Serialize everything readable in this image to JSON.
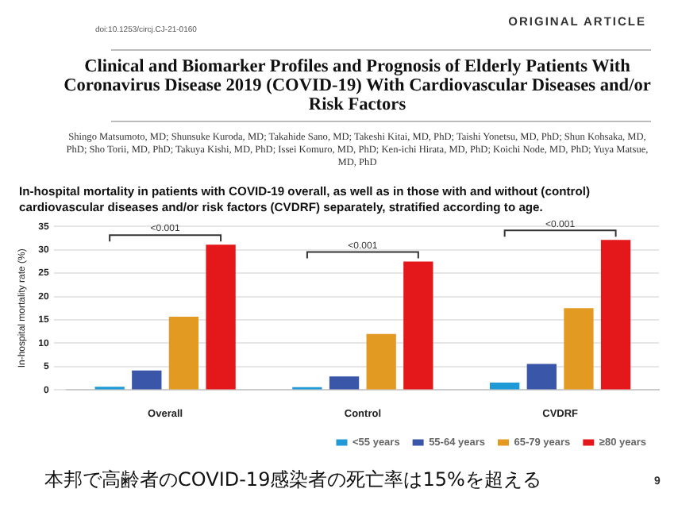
{
  "chart_data": {
    "type": "bar",
    "title": "Clinical and Biomarker Profiles and Prognosis of Elderly Patients With Coronavirus Disease 2019 (COVID-19) With Cardiovascular Diseases and/or Risk Factors",
    "subtitle": "In-hospital mortality in patients with COVID-19 overall, as well as in those with and without (control) cardiovascular diseases and/or risk factors (CVDRF) separately, stratified according to age.",
    "ylabel": "In-hospital mortality rate (%)",
    "categories": [
      "Overall",
      "Control",
      "CVDRF"
    ],
    "series": [
      {
        "name": "<55 years",
        "color": "#1f9ad6",
        "values": [
          0.7,
          0.6,
          1.6
        ]
      },
      {
        "name": "55-64 years",
        "color": "#3a56a8",
        "values": [
          4.2,
          2.9,
          5.6
        ]
      },
      {
        "name": "65-79 years",
        "color": "#e39a22",
        "values": [
          15.7,
          12.0,
          17.5
        ]
      },
      {
        "name": "≥80 years",
        "color": "#e4181b",
        "values": [
          31.1,
          27.5,
          32.1
        ]
      }
    ],
    "ylim": [
      0,
      35
    ],
    "yticks": [
      0,
      5,
      10,
      15,
      20,
      25,
      30,
      35
    ],
    "grid": "y",
    "legend": "bottom",
    "annotations": [
      "ORIGINAL ARTICLE",
      "doi:10.1253/circj.CJ-21-0160",
      "Shingo Matsumoto, MD; Shunsuke Kuroda, MD; Takahide Sano, MD; Takeshi Kitai, MD, PhD; Taishi Yonetsu, MD, PhD; Shun Kohsaka, MD, PhD; Sho Torii, MD, PhD; Takuya Kishi, MD, PhD; Issei Komuro, MD, PhD; Ken-ichi Hirata, MD, PhD; Koichi Node, MD, PhD; Yuya Matsue, MD, PhD",
      "<0.001",
      "<0.001",
      "<0.001",
      "本邦で高齢者のCOVID-19感染者の死亡率は15%を超える",
      "9"
    ]
  }
}
